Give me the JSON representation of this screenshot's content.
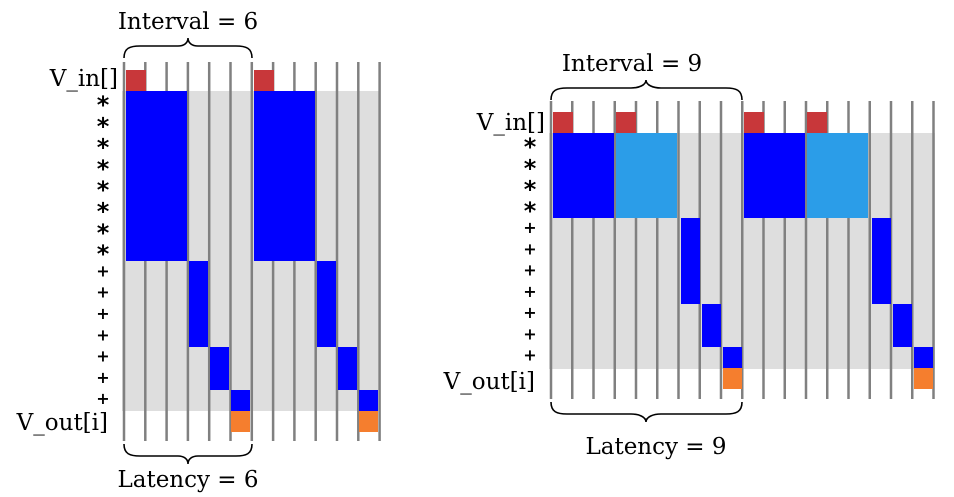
{
  "colors": {
    "background_band": "#dedede",
    "grid_line": "#808080",
    "input": "#c8373a",
    "multiply_stage": "#0000ff",
    "multiply_stage_second": "#2b9de8",
    "add_stage": "#0000ff",
    "output": "#f57e2e"
  },
  "left_diagram": {
    "interval_label": "Interval = 6",
    "latency_label": "Latency = 6",
    "input_label": "V_in[]",
    "output_label": "V_out[i]",
    "stage_symbols": [
      "*",
      "*",
      "*",
      "*",
      "*",
      "*",
      "*",
      "*",
      "+",
      "+",
      "+",
      "+",
      "+",
      "+",
      "+"
    ]
  },
  "right_diagram": {
    "interval_label": "Interval = 9",
    "latency_label": "Latency = 9",
    "input_label": "V_in[]",
    "output_label": "V_out[i]",
    "stage_symbols": [
      "*",
      "*",
      "*",
      "*",
      "+",
      "+",
      "+",
      "+",
      "+",
      "+",
      "+"
    ]
  }
}
